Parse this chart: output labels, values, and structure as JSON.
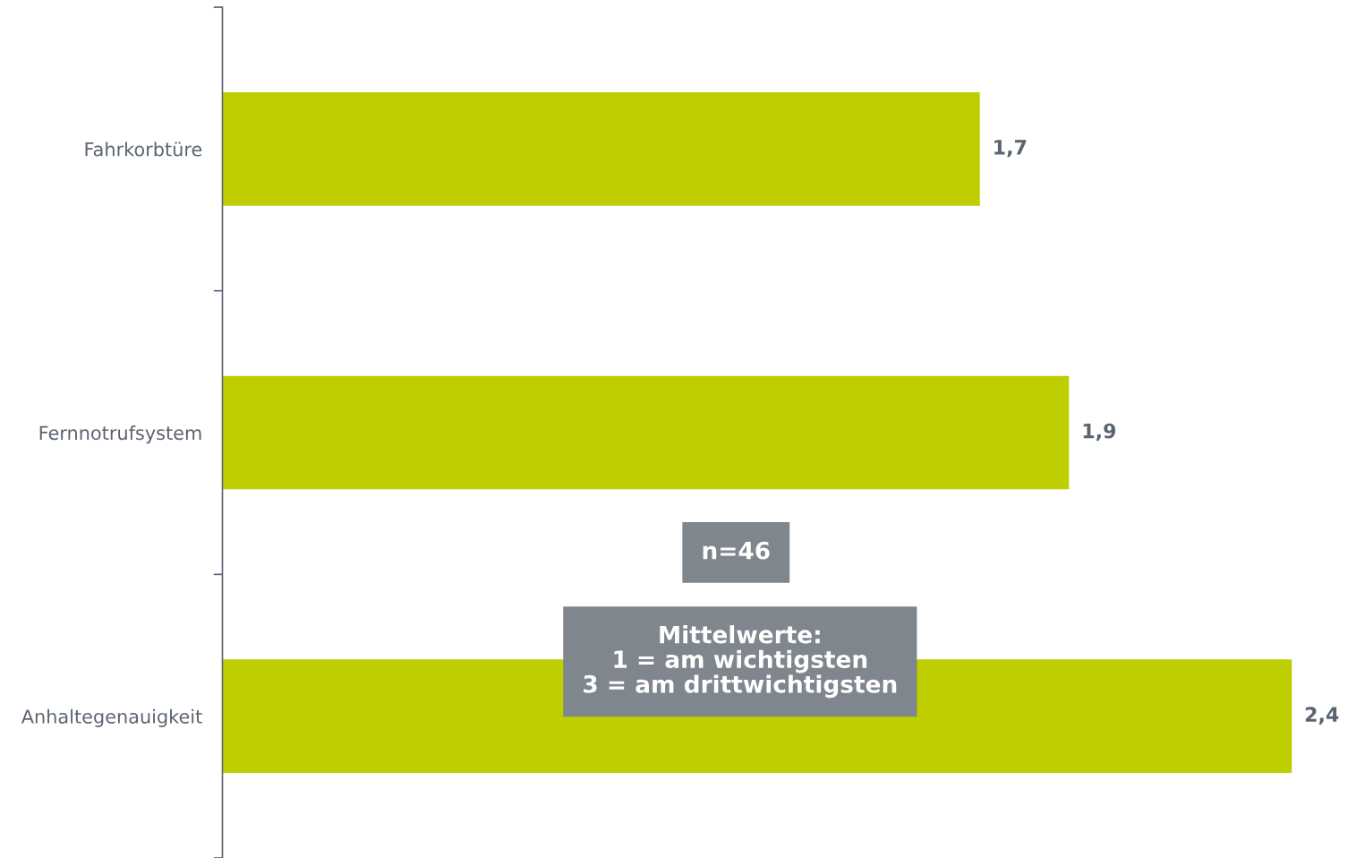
{
  "chart_data": {
    "type": "bar",
    "orientation": "horizontal",
    "categories": [
      "Fahrkorbtüre",
      "Fernnotrufsystem",
      "Anhaltegenauigkeit"
    ],
    "values": [
      1.7,
      1.9,
      2.4
    ],
    "color": "#bfce00",
    "value_labels": [
      "1,7",
      "1,9",
      "2,4"
    ],
    "tick_labels": "y",
    "grid": false,
    "annotations": [
      "n=46",
      "Mittelwerte:\n1 = am wichtigsten\n3 = am drittwichtigsten"
    ]
  }
}
